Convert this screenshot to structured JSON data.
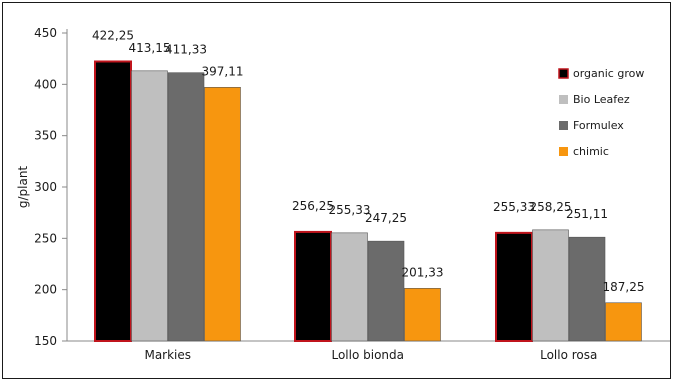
{
  "chart_data": {
    "type": "bar",
    "title": "",
    "xlabel": "",
    "ylabel": "g/plant",
    "ylim": [
      150,
      450
    ],
    "yticks": [
      150,
      200,
      250,
      300,
      350,
      400,
      450
    ],
    "grid": false,
    "legend_position": "right",
    "categories": [
      "Markies",
      "Lollo bionda",
      "Lollo rosa"
    ],
    "series": [
      {
        "name": "organic grow",
        "color": "#000000",
        "outline": "#c0141c",
        "values": [
          422.25,
          256.25,
          255.33
        ],
        "labels": [
          "422,25",
          "256,25",
          "255,33"
        ]
      },
      {
        "name": "Bio Leafez",
        "color": "#bfbfbf",
        "values": [
          413.15,
          255.33,
          258.25
        ],
        "labels": [
          "413,15",
          "255,33",
          "258,25"
        ]
      },
      {
        "name": "Formulex",
        "color": "#6b6b6b",
        "values": [
          411.33,
          247.25,
          251.11
        ],
        "labels": [
          "411,33",
          "247,25",
          "251,11"
        ]
      },
      {
        "name": "chimic",
        "color": "#f7960f",
        "values": [
          397.11,
          201.33,
          187.25
        ],
        "labels": [
          "397,11",
          "201,33",
          "187,25"
        ]
      }
    ]
  }
}
